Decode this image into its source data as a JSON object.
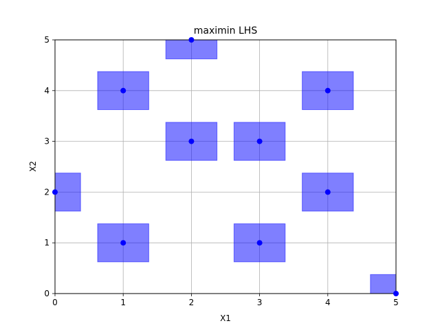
{
  "chart_data": {
    "type": "scatter",
    "title": "maximin LHS",
    "xlabel": "X1",
    "ylabel": "X2",
    "xlim": [
      0,
      5
    ],
    "ylim": [
      0,
      5
    ],
    "xticks": [
      0,
      1,
      2,
      3,
      4,
      5
    ],
    "yticks": [
      0,
      1,
      2,
      3,
      4,
      5
    ],
    "grid": true,
    "point_color": "#0000ff",
    "box_color": "#0000ff",
    "box_half_width": 0.375,
    "points": [
      {
        "x": 0,
        "y": 2
      },
      {
        "x": 1,
        "y": 1
      },
      {
        "x": 1,
        "y": 4
      },
      {
        "x": 2,
        "y": 3
      },
      {
        "x": 2,
        "y": 5
      },
      {
        "x": 3,
        "y": 1
      },
      {
        "x": 3,
        "y": 3
      },
      {
        "x": 4,
        "y": 2
      },
      {
        "x": 4,
        "y": 4
      },
      {
        "x": 5,
        "y": 0
      }
    ]
  }
}
